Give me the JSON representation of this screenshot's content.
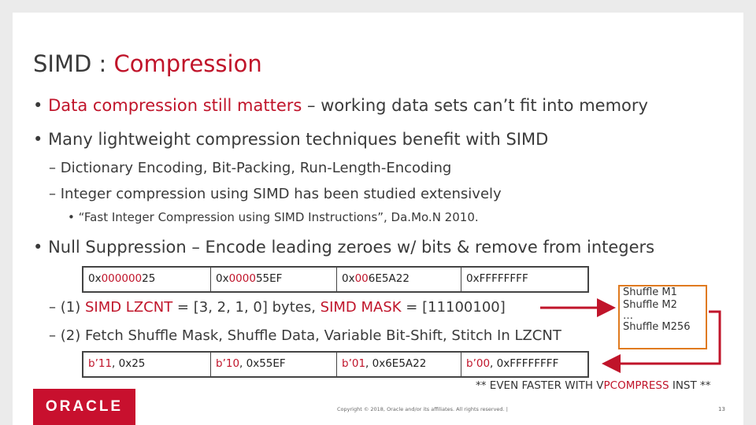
{
  "title": {
    "prefix": "SIMD : ",
    "highlight": "Compression"
  },
  "bullets": {
    "b1_red": "Data compression still matters",
    "b1_rest": " – working data sets can’t fit into memory",
    "b2": "Many lightweight compression techniques benefit with SIMD",
    "b2_sub1": "– Dictionary Encoding, Bit-Packing, Run-Length-Encoding",
    "b2_sub2": "– Integer compression using SIMD has been studied extensively",
    "b2_sub3": "“Fast Integer Compression using SIMD Instructions”, Da.Mo.N 2010.",
    "b3": "Null Suppression – Encode leading zeroes w/ bits & remove from integers"
  },
  "input_row": [
    {
      "pre": "0x",
      "red": "000000",
      "post": "25"
    },
    {
      "pre": "0x",
      "red": "0000",
      "post": "55EF"
    },
    {
      "pre": "0x",
      "red": "00",
      "post": "6E5A22"
    },
    {
      "pre": "0x",
      "red": "",
      "post": "FFFFFFFF"
    }
  ],
  "step1": {
    "dash": "– (1) ",
    "lzcnt": "SIMD LZCNT",
    "mid": " = [3, 2, 1, 0] bytes, ",
    "mask": "SIMD MASK",
    "end": " = [11100100]"
  },
  "step2": "– (2) Fetch Shuffle Mask, Shuffle Data, Variable Bit-Shift, Stitch In LZCNT",
  "output_row": [
    {
      "red": "b’11",
      "post": ", 0x25"
    },
    {
      "red": "b’10",
      "post": ", 0x55EF"
    },
    {
      "red": "b’01",
      "post": ", 0x6E5A22"
    },
    {
      "red": "b’00",
      "post": ", 0xFFFFFFFF"
    }
  ],
  "shuffle": {
    "m1": "Shuffle M1",
    "m2": "Shuffle M2",
    "dots": "…",
    "m256": "Shuffle M256"
  },
  "faster": {
    "pre": "** EVEN FASTER WITH V",
    "red": "PCOMPRESS",
    "post": " INST **"
  },
  "footer": {
    "logo": "ORACLE",
    "copyright": "Copyright © 2018, Oracle and/or its affiliates. All rights reserved.  |",
    "page": "13"
  },
  "colors": {
    "accent": "#c0142a",
    "orange": "#e07a1f"
  }
}
